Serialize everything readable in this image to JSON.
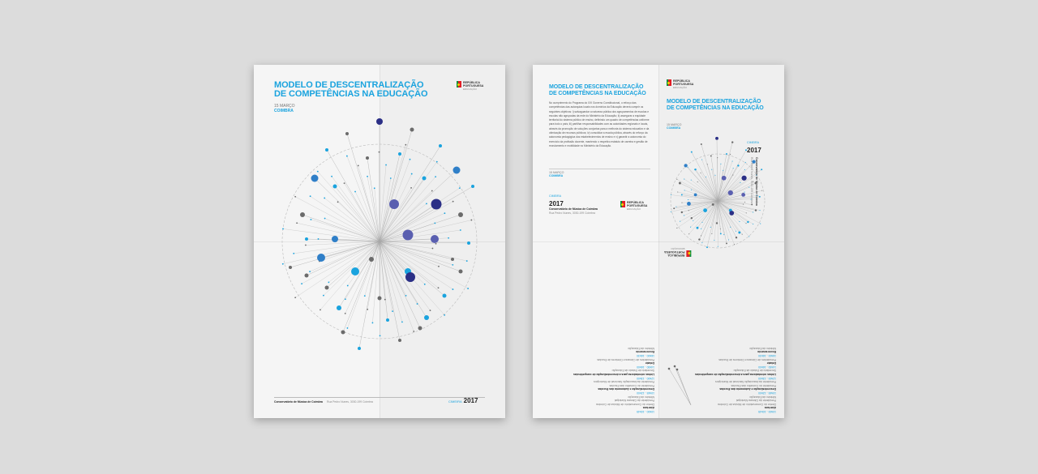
{
  "title_line1": "MODELO DE DESCENTRALIZAÇÃO",
  "title_line2": "DE COMPETÊNCIAS NA EDUCAÇÃO",
  "date": "15 MARÇO",
  "city": "COIMBRA",
  "logo": {
    "line1": "REPÚBLICA",
    "line2": "PORTUGUESA",
    "line3": "EDUCAÇÃO"
  },
  "venue": "Conservatório de Música de Coimbra",
  "address": "Rua Pedro Nunes, 3030-199 Coimbra",
  "year_label": "CIMEIRA",
  "year": "2017",
  "colors": {
    "accent": "#1aa3de",
    "navy": "#2b2f86",
    "grey": "#6b6b6b",
    "background": "#dcdcdc"
  },
  "intro_paragraph": "No cumprimento do Programa do XXI Governo Constitucional, o reforço das competências das autarquias locais nos domínios da Educação deverá cumprir os seguintes objetivos: i) salvaguardar a natureza pública dos agrupamentos de escolas e escolas não agrupadas da rede do Ministério da Educação; ii) assegurar a equidade territorial do sistema público de ensino, definindo um quadro de competências uniforme para todo o país; iii) partilhar responsabilidades com as autoridades regionais e locais, através da promoção de soluções conjuntas para a melhoria do sistema educativo e da otimização de recursos públicos; iv) consolidar a escola pública, através do reforço da autonomia pedagógica dos estabelecimentos de ensino e v) garantir a autonomia do exercício da profissão docente, mantendo o respetivo estatuto de carreira e gestão de recrutamento e mobilidade no Ministério da Educação.",
  "program": [
    {
      "k": "t",
      "v": "10h00 - 10h45"
    },
    {
      "k": "b",
      "v": "Abertura"
    },
    {
      "k": "g",
      "v": "Diretor do Conservatório de Música de Coimbra"
    },
    {
      "k": "g",
      "v": "Presidente da Câmara Municipal"
    },
    {
      "k": "g",
      "v": "Ministro da Educação"
    },
    {
      "k": "t",
      "v": "10h45 - 12h00"
    },
    {
      "k": "b",
      "v": "Descentralização e Autonomia das Escolas"
    },
    {
      "k": "g",
      "v": "Presidente do Conselho das Escolas"
    },
    {
      "k": "g",
      "v": "Presidente da Associação Nacional de Municípios"
    },
    {
      "k": "t",
      "v": "12h00 - 13h00"
    },
    {
      "k": "b",
      "v": "Linhas orientadoras para a descentralização de competências"
    },
    {
      "k": "g",
      "v": "Secretário de Estado da Educação"
    },
    {
      "k": "t",
      "v": "14h30 - 16h00"
    },
    {
      "k": "b",
      "v": "Debate"
    },
    {
      "k": "g",
      "v": "Presidentes de Câmara e Diretores de Escolas"
    },
    {
      "k": "t",
      "v": "16h00 - 16h30"
    },
    {
      "k": "b",
      "v": "Encerramento"
    },
    {
      "k": "g",
      "v": "Ministro da Educação"
    }
  ],
  "chart_data": {
    "type": "scatter",
    "dots": [
      [
        150,
        60,
        4,
        "n"
      ],
      [
        110,
        75,
        2,
        "g"
      ],
      [
        190,
        70,
        2.5,
        "g"
      ],
      [
        85,
        95,
        2,
        "b"
      ],
      [
        225,
        90,
        2,
        "b"
      ],
      [
        70,
        130,
        4.5,
        "m"
      ],
      [
        245,
        120,
        4.5,
        "m"
      ],
      [
        168,
        162,
        6,
        "p"
      ],
      [
        220,
        162,
        6.5,
        "n"
      ],
      [
        185,
        200,
        6.5,
        "p"
      ],
      [
        218,
        205,
        5,
        "p"
      ],
      [
        95,
        205,
        4,
        "m"
      ],
      [
        78,
        228,
        5,
        "m"
      ],
      [
        120,
        245,
        5,
        "b"
      ],
      [
        185,
        245,
        4,
        "b"
      ],
      [
        188,
        252,
        6,
        "n"
      ],
      [
        150,
        278,
        2.5,
        "g"
      ],
      [
        100,
        290,
        3,
        "b"
      ],
      [
        208,
        302,
        3,
        "b"
      ],
      [
        60,
        250,
        2.5,
        "g"
      ],
      [
        250,
        245,
        2.5,
        "g"
      ],
      [
        40,
        240,
        2,
        "g"
      ],
      [
        260,
        210,
        2,
        "b"
      ],
      [
        105,
        320,
        2.5,
        "g"
      ],
      [
        200,
        315,
        2.5,
        "g"
      ],
      [
        125,
        340,
        2,
        "b"
      ],
      [
        175,
        330,
        2,
        "g"
      ],
      [
        55,
        175,
        3,
        "g"
      ],
      [
        250,
        175,
        3,
        "g"
      ],
      [
        95,
        140,
        2.5,
        "b"
      ],
      [
        205,
        130,
        2.5,
        "b"
      ],
      [
        135,
        105,
        2,
        "g"
      ],
      [
        175,
        100,
        2,
        "b"
      ],
      [
        60,
        205,
        2,
        "b"
      ],
      [
        265,
        140,
        2,
        "b"
      ],
      [
        140,
        230,
        3,
        "g"
      ],
      [
        230,
        275,
        2.5,
        "b"
      ],
      [
        85,
        265,
        2.5,
        "g"
      ],
      [
        160,
        305,
        2,
        "b"
      ],
      [
        240,
        230,
        2,
        "g"
      ]
    ],
    "lines": 70
  }
}
